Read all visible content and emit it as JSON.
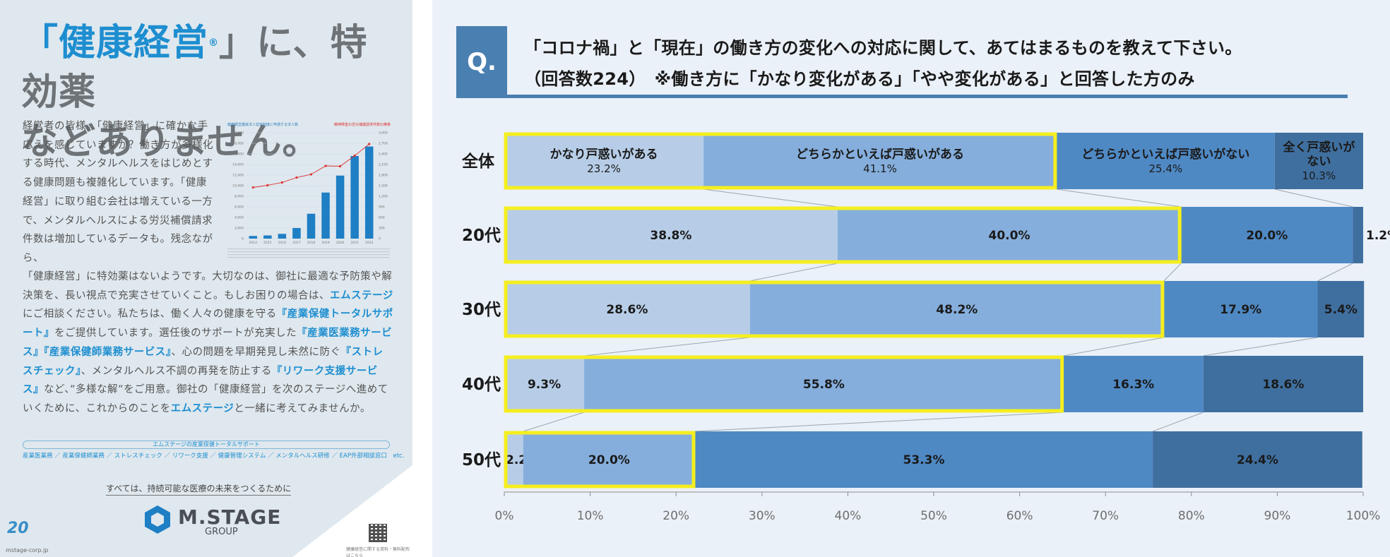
{
  "ad": {
    "headline_line1_accent": "「健康経営",
    "headline_reg_mark": "®",
    "headline_line1_rest": "」に、特効薬",
    "headline_line2": "などありません。",
    "body1": "経営者の皆様。「健康経営」に確かな手応えを感じていますか？働き方が多様化する時代、メンタルヘルスをはじめとする健康問題も複雑化しています。「健康経営」に取り組む会社は増えている一方で、メンタルヘルスによる労災補償請求件数は増加しているデータも。残念ながら、",
    "body2_parts": [
      "「健康経営」に特効薬はないようです。大切なのは、御社に最適な予防策や解決策を、長い視点で充実させていくこと。もしお困りの場合は、",
      "エムステージ",
      "にご相談ください。私たちは、働く人々の健康を守る",
      "『産業保健トータルサポート』",
      "をご提供しています。選任後のサポートが充実した",
      "『産業医業務サービス』『産業保健師業務サービス』",
      "、心の問題を早期発見し未然に防ぐ",
      "『ストレスチェック』",
      "、メンタルヘルス不調の再発を防止する",
      "『リワーク支援サービス』",
      "など、”多様な解”をご用意。御社の「健康経営」を次のステージへ進めていくために、これからのことを",
      "エムステージ",
      "と一緒に考えてみませんか。"
    ],
    "mini_chart": {
      "title_left": "健康経営優良法人認定制度に申請する法人数",
      "title_right": "精神障害の労災補償請求件数の推移",
      "years": [
        "2014",
        "2015",
        "2016",
        "2017",
        "2018",
        "2019",
        "2020",
        "2021",
        "2022"
      ],
      "bars": [
        500,
        600,
        900,
        2000,
        4700,
        8700,
        11900,
        15600,
        17400
      ],
      "line": [
        1450,
        1510,
        1590,
        1730,
        1820,
        2060,
        2050,
        2350,
        2680
      ],
      "left_ticks": [
        "0",
        "2,000",
        "4,000",
        "6,000",
        "8,000",
        "10,000",
        "12,000",
        "14,000",
        "16,000",
        "18,000",
        "20,000"
      ],
      "right_ticks": [
        "0",
        "300",
        "600",
        "900",
        "1,200",
        "1,500",
        "1,800",
        "2,100",
        "2,400",
        "2,700",
        "3,000"
      ]
    },
    "pill": "エムステージの産業保健トータルサポート",
    "services": "産業医業務 ／ 産業保健師業務 ／ ストレスチェック ／ リワーク支援 ／ 健康管理システム ／ メンタルヘルス研修 ／ EAP外部相談窓口　etc.",
    "tagline": "すべては、持続可能な医療の未来をつくるために",
    "logo_name": "M.STAGE",
    "logo_group": "GROUP",
    "anniversary": "20",
    "url": "mstage-corp.jp",
    "qr_note": "健康経営に関する資料・無料配布はこちら"
  },
  "survey": {
    "q_badge": "Q.",
    "question_line1": "「コロナ禍」と「現在」の働き方の変化への対応に関して、あてはまるものを教えて下さい。",
    "question_line2": "（回答数224）　※働き方に「かなり変化がある」「やや変化がある」と回答した方のみ"
  },
  "chart_data": {
    "type": "bar",
    "orientation": "horizontal-stacked-100",
    "categories": [
      "全体",
      "20代",
      "30代",
      "40代",
      "50代"
    ],
    "series": [
      {
        "name": "かなり戸惑いがある",
        "values": [
          23.2,
          38.8,
          28.6,
          9.3,
          2.2
        ],
        "color": "#b7cde7"
      },
      {
        "name": "どちらかといえば戸惑いがある",
        "values": [
          41.1,
          40.0,
          48.2,
          55.8,
          20.0
        ],
        "color": "#85aedc"
      },
      {
        "name": "どちらかといえば戸惑いがない",
        "values": [
          25.4,
          20.0,
          17.9,
          16.3,
          53.3
        ],
        "color": "#4f89c4"
      },
      {
        "name": "全く戸惑いがない",
        "values": [
          10.3,
          1.2,
          5.4,
          18.6,
          24.4
        ],
        "color": "#3f6f9f"
      }
    ],
    "legend_inline_series_names": [
      "かなり戸惑いがある",
      "どちらかといえば戸惑いがある",
      "どちらかといえば戸惑いがない",
      "全く戸惑いが\nない"
    ],
    "xlim": [
      0,
      100
    ],
    "xticks": [
      "0%",
      "10%",
      "20%",
      "30%",
      "40%",
      "50%",
      "60%",
      "70%",
      "80%",
      "90%",
      "100%"
    ],
    "highlight_color": "#f5ee1f",
    "highlight": "first two segments of each bar outlined in yellow",
    "grid": false
  }
}
